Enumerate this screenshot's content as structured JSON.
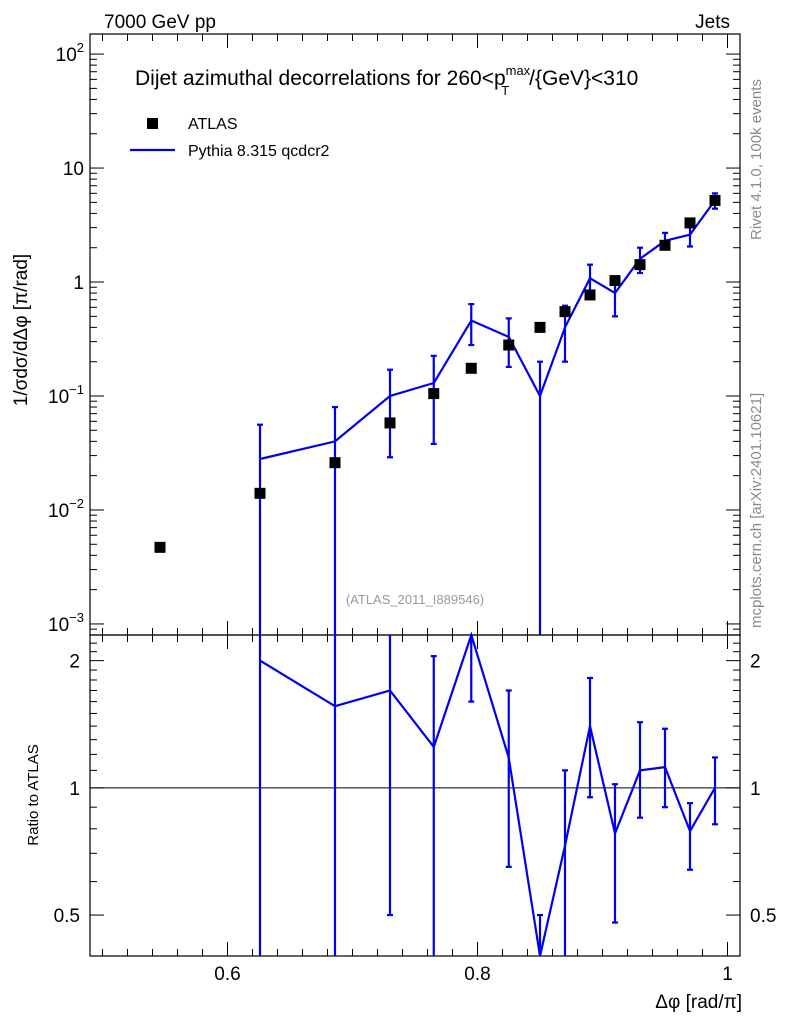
{
  "header": {
    "left": "7000 GeV pp",
    "right": "Jets"
  },
  "side_text": {
    "rivet": "Rivet 4.1.0,  100k events",
    "mcplots": "mcplots.cern.ch [arXiv:2401.10621]"
  },
  "analysis_id": "(ATLAS_2011_I889546)",
  "chart_data": [
    {
      "type": "scatter",
      "title_main": "Dijet azimuthal decorrelations for 260<p",
      "title_sup": "max",
      "title_sub": "T",
      "title_tail": "/{GeV}<310",
      "ylabel": "1/σdσ/dΔφ [π/rad]",
      "yscale": "log",
      "ylim": [
        0.0008,
        150
      ],
      "xlim": [
        0.49,
        1.01
      ],
      "y_tick_labels": [
        {
          "value": 0.001,
          "base": "10",
          "exp": "−3"
        },
        {
          "value": 0.01,
          "base": "10",
          "exp": "−2"
        },
        {
          "value": 0.1,
          "base": "10",
          "exp": "−1"
        },
        {
          "value": 1,
          "base": "1",
          "exp": ""
        },
        {
          "value": 10,
          "base": "10",
          "exp": ""
        },
        {
          "value": 100,
          "base": "10",
          "exp": "2"
        }
      ],
      "legend": [
        {
          "label": "ATLAS",
          "marker": "square",
          "color": "#000000"
        },
        {
          "label": "Pythia 8.315 qcdcr2",
          "marker": "line",
          "color": "#0000ee"
        }
      ],
      "series": [
        {
          "name": "ATLAS",
          "color": "#000000",
          "x": [
            0.546,
            0.626,
            0.686,
            0.73,
            0.765,
            0.795,
            0.825,
            0.85,
            0.87,
            0.89,
            0.91,
            0.93,
            0.95,
            0.97,
            0.99
          ],
          "y": [
            0.0047,
            0.014,
            0.026,
            0.058,
            0.105,
            0.175,
            0.28,
            0.4,
            0.55,
            0.77,
            1.03,
            1.42,
            2.1,
            3.3,
            5.2
          ]
        },
        {
          "name": "Pythia 8.315 qcdcr2",
          "color": "#0000ee",
          "x": [
            0.626,
            0.686,
            0.73,
            0.765,
            0.795,
            0.825,
            0.85,
            0.87,
            0.89,
            0.91,
            0.93,
            0.95,
            0.97,
            0.99
          ],
          "y": [
            0.028,
            0.04,
            0.1,
            0.13,
            0.46,
            0.33,
            0.1,
            0.4,
            1.08,
            0.8,
            1.6,
            2.3,
            2.6,
            5.2
          ],
          "err_low": [
            0.0008,
            0.0008,
            0.029,
            0.038,
            0.28,
            0.18,
            0.0008,
            0.2,
            0.78,
            0.5,
            1.2,
            1.95,
            2.05,
            4.4
          ],
          "err_high": [
            0.056,
            0.08,
            0.17,
            0.225,
            0.64,
            0.48,
            0.2,
            0.62,
            1.42,
            1.1,
            2.0,
            2.7,
            3.2,
            6.0
          ]
        }
      ]
    },
    {
      "type": "line",
      "ylabel": "Ratio to ATLAS",
      "xlabel": "Δφ [rad/π]",
      "ylim": [
        0.4,
        2.3
      ],
      "xlim": [
        0.49,
        1.01
      ],
      "y_ticks": [
        0.5,
        1,
        2
      ],
      "y_tick_labels": [
        "0.5",
        "1",
        "2"
      ],
      "x_ticks": [
        0.6,
        0.8,
        1
      ],
      "x_tick_labels": [
        "0.6",
        "0.8",
        "1"
      ],
      "reference": 1,
      "series": [
        {
          "name": "Pythia 8.315 qcdcr2 / ATLAS",
          "color": "#0000ee",
          "x": [
            0.626,
            0.686,
            0.73,
            0.765,
            0.795,
            0.825,
            0.85,
            0.87,
            0.89,
            0.91,
            0.93,
            0.95,
            0.97,
            0.99
          ],
          "y": [
            2.0,
            1.56,
            1.7,
            1.25,
            2.5,
            1.18,
            0.25,
            0.73,
            1.4,
            0.78,
            1.1,
            1.12,
            0.79,
            1.0
          ],
          "err_low": [
            0.05,
            0.05,
            0.5,
            0.35,
            1.6,
            0.65,
            0.05,
            0.35,
            0.95,
            0.48,
            0.85,
            0.9,
            0.64,
            0.82
          ],
          "err_high": [
            4.0,
            3.1,
            2.9,
            2.05,
            3.7,
            1.7,
            0.5,
            1.1,
            1.82,
            1.02,
            1.43,
            1.38,
            0.92,
            1.18
          ]
        }
      ]
    }
  ]
}
